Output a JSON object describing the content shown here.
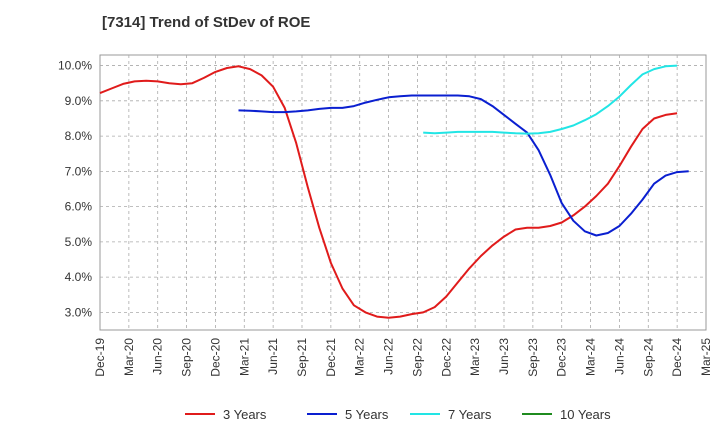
{
  "chart_data": {
    "type": "line",
    "title": "[7314]  Trend of StDev of ROE",
    "xlabel": "",
    "ylabel": "",
    "x_ticks": [
      "Dec-19",
      "Mar-20",
      "Jun-20",
      "Sep-20",
      "Dec-20",
      "Mar-21",
      "Jun-21",
      "Sep-21",
      "Dec-21",
      "Mar-22",
      "Jun-22",
      "Sep-22",
      "Dec-22",
      "Mar-23",
      "Jun-23",
      "Sep-23",
      "Dec-23",
      "Mar-24",
      "Jun-24",
      "Sep-24",
      "Dec-24",
      "Mar-25"
    ],
    "y_ticks": [
      "3.0%",
      "4.0%",
      "5.0%",
      "6.0%",
      "7.0%",
      "8.0%",
      "9.0%",
      "10.0%"
    ],
    "ylim": [
      2.5,
      10.3
    ],
    "grid": true,
    "legend_position": "bottom",
    "series": [
      {
        "name": "3 Years",
        "color": "#e01b1b",
        "start_index": 0,
        "values": [
          9.22,
          9.35,
          9.48,
          9.55,
          9.57,
          9.55,
          9.5,
          9.47,
          9.5,
          9.65,
          9.82,
          9.93,
          9.98,
          9.9,
          9.72,
          9.4,
          8.8,
          7.8,
          6.55,
          5.4,
          4.4,
          3.68,
          3.2,
          3.0,
          2.88,
          2.85,
          2.88,
          2.95,
          3.0,
          3.15,
          3.45,
          3.85,
          4.25,
          4.6,
          4.9,
          5.15,
          5.35,
          5.4,
          5.4,
          5.45,
          5.55,
          5.75,
          6.0,
          6.3,
          6.65,
          7.15,
          7.7,
          8.2,
          8.5,
          8.6,
          8.65
        ]
      },
      {
        "name": "5 Years",
        "color": "#0a1fd0",
        "start_index": 12,
        "values": [
          8.73,
          8.72,
          8.7,
          8.68,
          8.68,
          8.7,
          8.73,
          8.77,
          8.8,
          8.8,
          8.85,
          8.95,
          9.03,
          9.1,
          9.13,
          9.15,
          9.15,
          9.15,
          9.15,
          9.15,
          9.13,
          9.05,
          8.85,
          8.6,
          8.35,
          8.1,
          7.6,
          6.9,
          6.1,
          5.6,
          5.3,
          5.18,
          5.25,
          5.45,
          5.8,
          6.2,
          6.65,
          6.88,
          6.98,
          7.0
        ]
      },
      {
        "name": "7 Years",
        "color": "#22e5e5",
        "start_index": 28,
        "values": [
          8.1,
          8.08,
          8.1,
          8.12,
          8.12,
          8.12,
          8.12,
          8.1,
          8.08,
          8.07,
          8.08,
          8.12,
          8.2,
          8.3,
          8.45,
          8.62,
          8.85,
          9.12,
          9.45,
          9.75,
          9.9,
          9.98,
          10.0
        ]
      },
      {
        "name": "10 Years",
        "color": "#1f8b1f",
        "start_index": 0,
        "values": []
      }
    ]
  }
}
